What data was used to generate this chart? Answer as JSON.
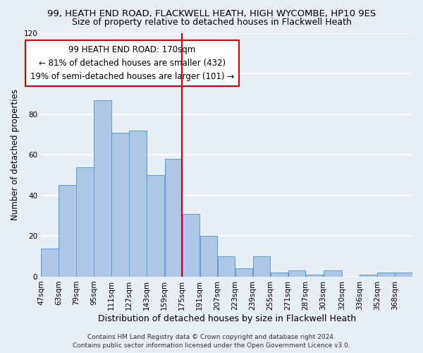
{
  "title": "99, HEATH END ROAD, FLACKWELL HEATH, HIGH WYCOMBE, HP10 9ES",
  "subtitle": "Size of property relative to detached houses in Flackwell Heath",
  "xlabel": "Distribution of detached houses by size in Flackwell Heath",
  "ylabel": "Number of detached properties",
  "bin_labels": [
    "47sqm",
    "63sqm",
    "79sqm",
    "95sqm",
    "111sqm",
    "127sqm",
    "143sqm",
    "159sqm",
    "175sqm",
    "191sqm",
    "207sqm",
    "223sqm",
    "239sqm",
    "255sqm",
    "271sqm",
    "287sqm",
    "303sqm",
    "320sqm",
    "336sqm",
    "352sqm",
    "368sqm"
  ],
  "bin_edges": [
    47,
    63,
    79,
    95,
    111,
    127,
    143,
    159,
    175,
    191,
    207,
    223,
    239,
    255,
    271,
    287,
    303,
    320,
    336,
    352,
    368,
    384
  ],
  "bar_heights": [
    14,
    45,
    54,
    87,
    71,
    72,
    50,
    58,
    31,
    20,
    10,
    4,
    10,
    2,
    3,
    1,
    3,
    0,
    1,
    2,
    2
  ],
  "bar_color": "#aec6e8",
  "bar_edge_color": "#5a9fd4",
  "vline_x": 175,
  "vline_color": "#cc0000",
  "ylim": [
    0,
    120
  ],
  "yticks": [
    0,
    20,
    40,
    60,
    80,
    100,
    120
  ],
  "background_color": "#e8eef8",
  "grid_color": "#ffffff",
  "annotation_box_text": "99 HEATH END ROAD: 170sqm\n← 81% of detached houses are smaller (432)\n19% of semi-detached houses are larger (101) →",
  "annotation_box_color": "#cc0000",
  "footer_line1": "Contains HM Land Registry data © Crown copyright and database right 2024.",
  "footer_line2": "Contains public sector information licensed under the Open Government Licence v3.0.",
  "title_fontsize": 9.5,
  "subtitle_fontsize": 9,
  "xlabel_fontsize": 9,
  "ylabel_fontsize": 8.5,
  "tick_fontsize": 7.5,
  "annotation_fontsize": 8.5,
  "footer_fontsize": 6.5
}
